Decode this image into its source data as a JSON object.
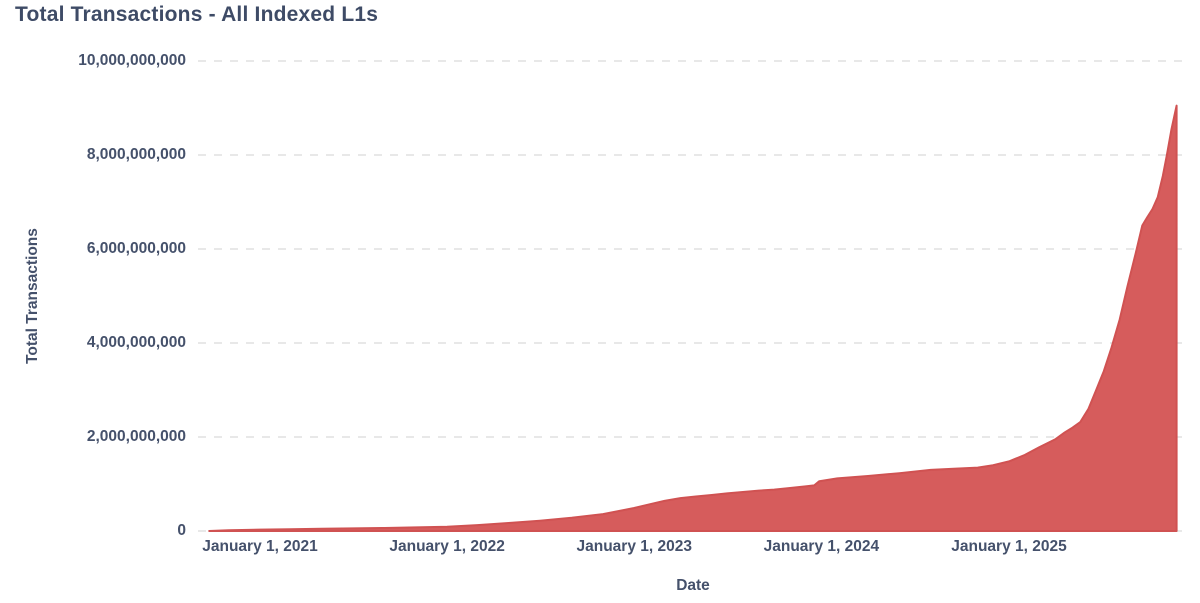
{
  "title": "Total Transactions - All Indexed L1s",
  "colors": {
    "background": "#ffffff",
    "area_fill": "#d65c5c",
    "area_stroke": "#d05252",
    "grid": "#e8e8e8",
    "title_text": "#3e4b66",
    "axis_text": "#45516b"
  },
  "chart_data": {
    "type": "area",
    "title": "Total Transactions - All Indexed L1s",
    "xlabel": "Date",
    "ylabel": "Total Transactions",
    "legend": "none",
    "grid": "horizontal-dashed",
    "ylim": [
      0,
      10000000000
    ],
    "y_tick_values": [
      10000000000,
      8000000000,
      6000000000,
      4000000000,
      2000000000,
      0
    ],
    "y_tick_labels": [
      "10,000,000,000",
      "8,000,000,000",
      "6,000,000,000",
      "4,000,000,000",
      "2,000,000,000",
      "0"
    ],
    "x_tick_dates": [
      "2021-01-01",
      "2022-01-01",
      "2023-01-01",
      "2024-01-01",
      "2025-01-01"
    ],
    "x_tick_labels": [
      "January 1, 2021",
      "January 1, 2022",
      "January 1, 2023",
      "January 1, 2024",
      "January 1, 2025"
    ],
    "x_range_dates": [
      "2020-09-24",
      "2025-11-24"
    ],
    "series": [
      {
        "name": "Total Transactions",
        "color": "#d65c5c",
        "points": [
          [
            "2020-09-24",
            0
          ],
          [
            "2020-11-01",
            15000000
          ],
          [
            "2021-01-01",
            30000000
          ],
          [
            "2021-03-01",
            38000000
          ],
          [
            "2021-05-01",
            46000000
          ],
          [
            "2021-07-01",
            55000000
          ],
          [
            "2021-09-01",
            64000000
          ],
          [
            "2021-11-01",
            76000000
          ],
          [
            "2022-01-01",
            90000000
          ],
          [
            "2022-03-01",
            125000000
          ],
          [
            "2022-05-01",
            170000000
          ],
          [
            "2022-07-01",
            220000000
          ],
          [
            "2022-09-01",
            280000000
          ],
          [
            "2022-11-01",
            360000000
          ],
          [
            "2023-01-01",
            490000000
          ],
          [
            "2023-02-01",
            570000000
          ],
          [
            "2023-03-01",
            640000000
          ],
          [
            "2023-04-01",
            700000000
          ],
          [
            "2023-05-01",
            735000000
          ],
          [
            "2023-06-01",
            765000000
          ],
          [
            "2023-07-01",
            800000000
          ],
          [
            "2023-08-01",
            830000000
          ],
          [
            "2023-09-01",
            860000000
          ],
          [
            "2023-10-01",
            880000000
          ],
          [
            "2023-11-01",
            915000000
          ],
          [
            "2023-12-01",
            950000000
          ],
          [
            "2023-12-18",
            970000000
          ],
          [
            "2023-12-28",
            1060000000
          ],
          [
            "2024-02-01",
            1120000000
          ],
          [
            "2024-04-01",
            1170000000
          ],
          [
            "2024-06-01",
            1230000000
          ],
          [
            "2024-08-01",
            1300000000
          ],
          [
            "2024-09-15",
            1325000000
          ],
          [
            "2024-11-01",
            1350000000
          ],
          [
            "2024-12-01",
            1400000000
          ],
          [
            "2025-01-01",
            1480000000
          ],
          [
            "2025-02-01",
            1620000000
          ],
          [
            "2025-03-01",
            1780000000
          ],
          [
            "2025-04-01",
            1950000000
          ],
          [
            "2025-04-20",
            2100000000
          ],
          [
            "2025-05-05",
            2200000000
          ],
          [
            "2025-05-20",
            2320000000
          ],
          [
            "2025-06-05",
            2600000000
          ],
          [
            "2025-06-20",
            3000000000
          ],
          [
            "2025-07-05",
            3400000000
          ],
          [
            "2025-07-20",
            3900000000
          ],
          [
            "2025-08-05",
            4500000000
          ],
          [
            "2025-08-20",
            5200000000
          ],
          [
            "2025-09-05",
            5900000000
          ],
          [
            "2025-09-18",
            6500000000
          ],
          [
            "2025-09-28",
            6680000000
          ],
          [
            "2025-10-08",
            6850000000
          ],
          [
            "2025-10-18",
            7100000000
          ],
          [
            "2025-10-28",
            7550000000
          ],
          [
            "2025-11-05",
            8000000000
          ],
          [
            "2025-11-14",
            8550000000
          ],
          [
            "2025-11-24",
            9050000000
          ]
        ]
      }
    ]
  }
}
